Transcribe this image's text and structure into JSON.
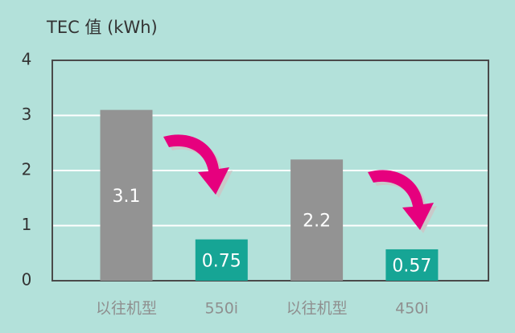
{
  "chart_data": {
    "type": "bar",
    "title": "TEC 值 (kWh)",
    "categories": [
      "以往机型",
      "550i",
      "以往机型",
      "450i"
    ],
    "values": [
      3.1,
      0.75,
      2.2,
      0.57
    ],
    "colors": [
      "#939393",
      "#16a595",
      "#939393",
      "#16a595"
    ],
    "ylim": [
      0,
      4
    ],
    "yticks": [
      0,
      1,
      2,
      3,
      4
    ],
    "grid": true
  }
}
